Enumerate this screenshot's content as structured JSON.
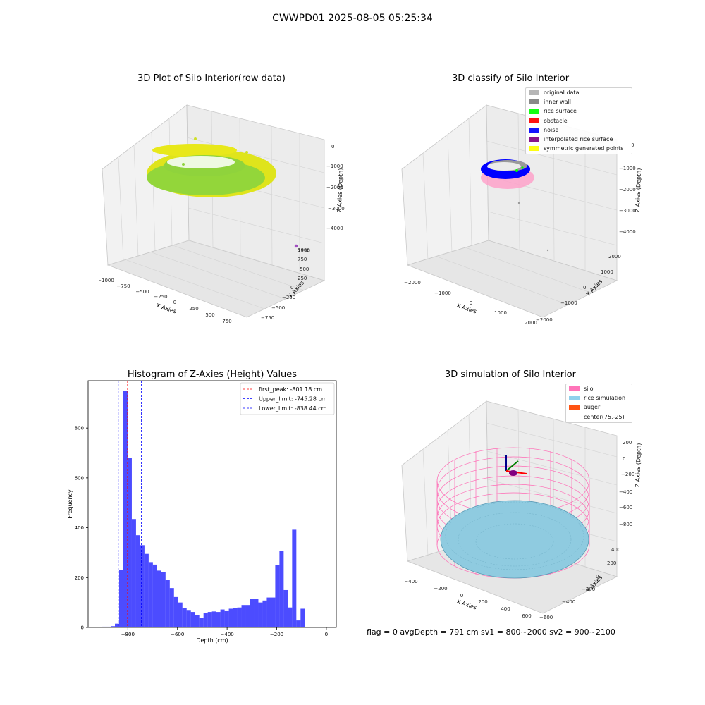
{
  "figure": {
    "suptitle": "CWWPD01 2025-08-05 05:25:34",
    "status_line": "flag = 0     avgDepth = 791 cm  sv1 = 800~2000  sv2 = 900~2100"
  },
  "panels": {
    "raw": {
      "title": "3D Plot of Silo Interior(row data)",
      "xlabel": "X Axies",
      "ylabel": "Y Axies",
      "zlabel": "Z Axies (Depth)",
      "xticks": [
        "−1000",
        "−750",
        "−500",
        "−250",
        "0",
        "250",
        "500",
        "750"
      ],
      "yticks": [
        "−750",
        "−500",
        "−250",
        "0",
        "250",
        "500",
        "750",
        "1000",
        "1250"
      ],
      "zticks": [
        "0",
        "−1000",
        "−2000",
        "−3000",
        "−4000"
      ]
    },
    "classify": {
      "title": "3D classify of Silo Interior",
      "xlabel": "X Axies",
      "ylabel": "Y Axies",
      "zlabel": "Z Axies (Depth)",
      "xticks": [
        "−2000",
        "−1000",
        "0",
        "1000",
        "2000"
      ],
      "yticks": [
        "−2000",
        "−1000",
        "0",
        "1000",
        "2000"
      ],
      "zticks": [
        "0",
        "−1000",
        "−2000",
        "−3000",
        "−4000"
      ],
      "legend": [
        {
          "label": "original data",
          "color": "#b0b0b0"
        },
        {
          "label": "inner wall",
          "color": "#808080"
        },
        {
          "label": "rice surface",
          "color": "#00ff00"
        },
        {
          "label": "obstacle",
          "color": "#ff0000"
        },
        {
          "label": "noise",
          "color": "#0000ff"
        },
        {
          "label": "interpolated rice surface",
          "color": "#800080"
        },
        {
          "label": "symmetric generated points",
          "color": "#ffff00"
        }
      ]
    },
    "simulation": {
      "title": "3D simulation of Silo Interior",
      "xlabel": "X Axies",
      "ylabel": "Y Axies",
      "zlabel": "Z Axies (Depth)",
      "xticks": [
        "−400",
        "−200",
        "0",
        "200",
        "400",
        "600"
      ],
      "yticks": [
        "−600",
        "−400",
        "−200",
        "0",
        "200",
        "400"
      ],
      "zticks": [
        "200",
        "0",
        "−200",
        "−400",
        "−600",
        "−800"
      ],
      "legend": [
        {
          "label": "silo",
          "color": "#ff69b4"
        },
        {
          "label": "rice simulation",
          "color": "#87ceeb"
        },
        {
          "label": "auger",
          "color": "#ff4500"
        },
        {
          "label": "center(75,-25)",
          "color": "none"
        }
      ]
    }
  },
  "chart_data": {
    "type": "bar",
    "title": "Histogram of Z-Axies (Height) Values",
    "xlabel": "Depth (cm)",
    "ylabel": "Frequency",
    "xlim": [
      -960,
      40
    ],
    "ylim": [
      0,
      990
    ],
    "xticks": [
      -800,
      -600,
      -400,
      -200,
      0
    ],
    "yticks": [
      0,
      200,
      400,
      600,
      800
    ],
    "bar_color": "#0000ff",
    "bin_edges": [
      -920,
      -903,
      -886,
      -869,
      -852,
      -835,
      -818,
      -801,
      -784,
      -767,
      -750,
      -733,
      -716,
      -699,
      -682,
      -665,
      -648,
      -631,
      -614,
      -597,
      -580,
      -563,
      -546,
      -529,
      -512,
      -495,
      -478,
      -461,
      -444,
      -427,
      -410,
      -393,
      -376,
      -359,
      -342,
      -325,
      -308,
      -291,
      -274,
      -257,
      -240,
      -223,
      -206,
      -189,
      -172,
      -155,
      -138,
      -121,
      -104,
      -87,
      -70,
      -53,
      -36,
      -19,
      -2
    ],
    "values": [
      2,
      3,
      3,
      5,
      15,
      230,
      950,
      680,
      435,
      370,
      330,
      295,
      262,
      252,
      228,
      222,
      190,
      158,
      122,
      100,
      78,
      70,
      62,
      50,
      38,
      58,
      62,
      64,
      62,
      72,
      68,
      75,
      78,
      80,
      90,
      90,
      115,
      115,
      100,
      108,
      120,
      120,
      250,
      308,
      150,
      80,
      392,
      28,
      75,
      0,
      0,
      0,
      0,
      0
    ],
    "vlines": [
      {
        "label": "first_peak: -801.18 cm",
        "x": -801.18,
        "color": "#ff0000"
      },
      {
        "label": "Upper_limit: -745.28 cm",
        "x": -745.28,
        "color": "#0000ff"
      },
      {
        "label": "Lower_limit: -838.44 cm",
        "x": -838.44,
        "color": "#0000ff"
      }
    ],
    "legend_position": "top-right"
  }
}
